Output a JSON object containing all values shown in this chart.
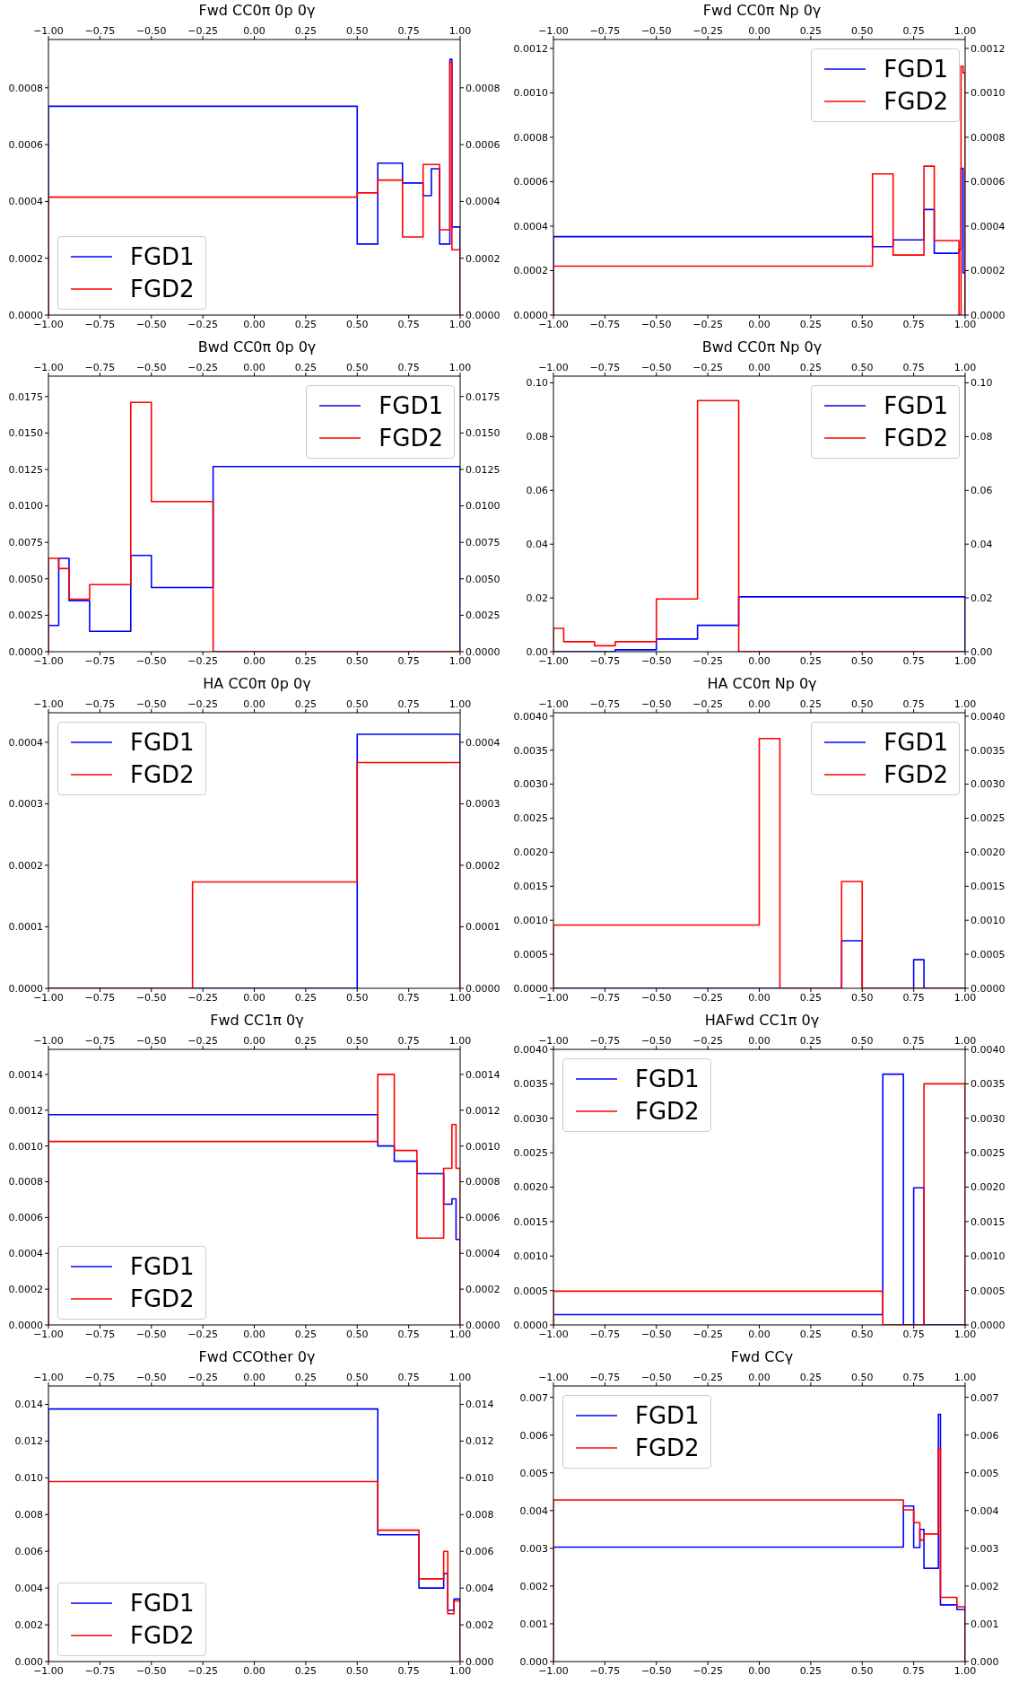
{
  "chart_data": [
    {
      "type": "histogram",
      "title": "Fwd CC0π 0p 0γ",
      "legend": "bottom left",
      "bins": [
        -1,
        0.5,
        0.6,
        0.72,
        0.82,
        0.86,
        0.9,
        0.95,
        0.96,
        1
      ],
      "series": [
        {
          "name": "FGD1",
          "color": "#0000ff",
          "values": [
            0.000735,
            0.00025,
            0.000535,
            0.000465,
            0.00042,
            0.000515,
            0.00025,
            0.0009,
            0.00031
          ]
        },
        {
          "name": "FGD2",
          "color": "#ff0000",
          "values": [
            0.000415,
            0.00043,
            0.000475,
            0.000275,
            0.00053,
            0.00053,
            0.0003,
            0.00089,
            0.00023
          ]
        }
      ],
      "xlim": [
        -1,
        1
      ],
      "xticks": [
        {
          "value": -1,
          "label": "−1.00"
        },
        {
          "value": -0.75,
          "label": "−0.75"
        },
        {
          "value": -0.5,
          "label": "−0.50"
        },
        {
          "value": -0.25,
          "label": "−0.25"
        },
        {
          "value": 0,
          "label": "0.00"
        },
        {
          "value": 0.25,
          "label": "0.25"
        },
        {
          "value": 0.5,
          "label": "0.50"
        },
        {
          "value": 0.75,
          "label": "0.75"
        },
        {
          "value": 1,
          "label": "1.00"
        }
      ],
      "x2lim": [
        -1,
        1
      ],
      "x2ticks": [
        {
          "value": -1,
          "label": "−1.00"
        },
        {
          "value": -0.75,
          "label": "−0.75"
        },
        {
          "value": -0.5,
          "label": "−0.50"
        },
        {
          "value": -0.25,
          "label": "−0.25"
        },
        {
          "value": 0,
          "label": "0.00"
        },
        {
          "value": 0.25,
          "label": "0.25"
        },
        {
          "value": 0.5,
          "label": "0.50"
        },
        {
          "value": 0.75,
          "label": "0.75"
        },
        {
          "value": 1,
          "label": "1.00"
        }
      ],
      "ylim": [
        0,
        0.00097
      ],
      "yticks": [
        {
          "value": 0,
          "label": "0.0000"
        },
        {
          "value": 0.0002,
          "label": "0.0002"
        },
        {
          "value": 0.0004,
          "label": "0.0004"
        },
        {
          "value": 0.0006,
          "label": "0.0006"
        },
        {
          "value": 0.0008,
          "label": "0.0008"
        }
      ],
      "y2lim": [
        0,
        0.00097
      ],
      "y2ticks": [
        {
          "value": 0,
          "label": "0.0000"
        },
        {
          "value": 0.0002,
          "label": "0.0002"
        },
        {
          "value": 0.0004,
          "label": "0.0004"
        },
        {
          "value": 0.0006,
          "label": "0.0006"
        },
        {
          "value": 0.0008,
          "label": "0.0008"
        }
      ]
    },
    {
      "type": "histogram",
      "title": "Fwd CC0π Np 0γ",
      "legend": "top right",
      "bins": [
        -1,
        0.55,
        0.65,
        0.8,
        0.85,
        0.97,
        0.98,
        0.99,
        1
      ],
      "series": [
        {
          "name": "FGD1",
          "color": "#0000ff",
          "values": [
            0.000353,
            0.000308,
            0.000338,
            0.000475,
            0.000278,
            0.000295,
            0.00066,
            0.00019
          ]
        },
        {
          "name": "FGD2",
          "color": "#ff0000",
          "values": [
            0.00022,
            0.000635,
            0.00027,
            0.00067,
            0.000335,
            0,
            0.00112,
            0.00109
          ]
        }
      ],
      "xlim": [
        -1,
        1
      ],
      "xticks": [
        {
          "value": -1,
          "label": "−1.00"
        },
        {
          "value": -0.75,
          "label": "−0.75"
        },
        {
          "value": -0.5,
          "label": "−0.50"
        },
        {
          "value": -0.25,
          "label": "−0.25"
        },
        {
          "value": 0,
          "label": "0.00"
        },
        {
          "value": 0.25,
          "label": "0.25"
        },
        {
          "value": 0.5,
          "label": "0.50"
        },
        {
          "value": 0.75,
          "label": "0.75"
        },
        {
          "value": 1,
          "label": "1.00"
        }
      ],
      "x2lim": [
        -1,
        1
      ],
      "x2ticks": [
        {
          "value": -1,
          "label": "−1.00"
        },
        {
          "value": -0.75,
          "label": "−0.75"
        },
        {
          "value": -0.5,
          "label": "−0.50"
        },
        {
          "value": -0.25,
          "label": "−0.25"
        },
        {
          "value": 0,
          "label": "0.00"
        },
        {
          "value": 0.25,
          "label": "0.25"
        },
        {
          "value": 0.5,
          "label": "0.50"
        },
        {
          "value": 0.75,
          "label": "0.75"
        },
        {
          "value": 1,
          "label": "1.00"
        }
      ],
      "ylim": [
        0,
        0.00124
      ],
      "yticks": [
        {
          "value": 0,
          "label": "0.0000"
        },
        {
          "value": 0.0002,
          "label": "0.0002"
        },
        {
          "value": 0.0004,
          "label": "0.0004"
        },
        {
          "value": 0.0006,
          "label": "0.0006"
        },
        {
          "value": 0.0008,
          "label": "0.0008"
        },
        {
          "value": 0.001,
          "label": "0.0010"
        },
        {
          "value": 0.0012,
          "label": "0.0012"
        }
      ],
      "y2lim": [
        0,
        0.00124
      ],
      "y2ticks": [
        {
          "value": 0,
          "label": "0.0000"
        },
        {
          "value": 0.0002,
          "label": "0.0002"
        },
        {
          "value": 0.0004,
          "label": "0.0004"
        },
        {
          "value": 0.0006,
          "label": "0.0006"
        },
        {
          "value": 0.0008,
          "label": "0.0008"
        },
        {
          "value": 0.001,
          "label": "0.0010"
        },
        {
          "value": 0.0012,
          "label": "0.0012"
        }
      ]
    },
    {
      "type": "histogram",
      "title": "Bwd CC0π 0p 0γ",
      "legend": "top right",
      "bins": [
        -1,
        -0.95,
        -0.9,
        -0.8,
        -0.6,
        -0.5,
        -0.2,
        1
      ],
      "series": [
        {
          "name": "FGD1",
          "color": "#0000ff",
          "values": [
            0.0018,
            0.0064,
            0.0035,
            0.0014,
            0.0066,
            0.0044,
            0.0127
          ]
        },
        {
          "name": "FGD2",
          "color": "#ff0000",
          "values": [
            0.0064,
            0.0057,
            0.0036,
            0.0046,
            0.0171,
            0.0103,
            0
          ]
        }
      ],
      "xlim": [
        -1,
        1
      ],
      "xticks": [
        {
          "value": -1,
          "label": "−1.00"
        },
        {
          "value": -0.75,
          "label": "−0.75"
        },
        {
          "value": -0.5,
          "label": "−0.50"
        },
        {
          "value": -0.25,
          "label": "−0.25"
        },
        {
          "value": 0,
          "label": "0.00"
        },
        {
          "value": 0.25,
          "label": "0.25"
        },
        {
          "value": 0.5,
          "label": "0.50"
        },
        {
          "value": 0.75,
          "label": "0.75"
        },
        {
          "value": 1,
          "label": "1.00"
        }
      ],
      "x2lim": [
        -1,
        1
      ],
      "x2ticks": [
        {
          "value": -1,
          "label": "−1.00"
        },
        {
          "value": -0.75,
          "label": "−0.75"
        },
        {
          "value": -0.5,
          "label": "−0.50"
        },
        {
          "value": -0.25,
          "label": "−0.25"
        },
        {
          "value": 0,
          "label": "0.00"
        },
        {
          "value": 0.25,
          "label": "0.25"
        },
        {
          "value": 0.5,
          "label": "0.50"
        },
        {
          "value": 0.75,
          "label": "0.75"
        },
        {
          "value": 1,
          "label": "1.00"
        }
      ],
      "ylim": [
        0,
        0.0189
      ],
      "yticks": [
        {
          "value": 0,
          "label": "0.0000"
        },
        {
          "value": 0.0025,
          "label": "0.0025"
        },
        {
          "value": 0.005,
          "label": "0.0050"
        },
        {
          "value": 0.0075,
          "label": "0.0075"
        },
        {
          "value": 0.01,
          "label": "0.0100"
        },
        {
          "value": 0.0125,
          "label": "0.0125"
        },
        {
          "value": 0.015,
          "label": "0.0150"
        },
        {
          "value": 0.0175,
          "label": "0.0175"
        }
      ],
      "y2lim": [
        0,
        0.0189
      ],
      "y2ticks": [
        {
          "value": 0,
          "label": "0.0000"
        },
        {
          "value": 0.0025,
          "label": "0.0025"
        },
        {
          "value": 0.005,
          "label": "0.0050"
        },
        {
          "value": 0.0075,
          "label": "0.0075"
        },
        {
          "value": 0.01,
          "label": "0.0100"
        },
        {
          "value": 0.0125,
          "label": "0.0125"
        },
        {
          "value": 0.015,
          "label": "0.0150"
        },
        {
          "value": 0.0175,
          "label": "0.0175"
        }
      ]
    },
    {
      "type": "histogram",
      "title": "Bwd CC0π Np 0γ",
      "legend": "top right",
      "bins": [
        -1,
        -0.95,
        -0.8,
        -0.7,
        -0.5,
        -0.3,
        -0.1,
        1
      ],
      "series": [
        {
          "name": "FGD1",
          "color": "#0000ff",
          "values": [
            0,
            0,
            0,
            0.0007,
            0.0047,
            0.0098,
            0.0204
          ]
        },
        {
          "name": "FGD2",
          "color": "#ff0000",
          "values": [
            0.0087,
            0.0037,
            0.0022,
            0.0037,
            0.0196,
            0.0934,
            0
          ]
        }
      ],
      "xlim": [
        -1,
        1
      ],
      "xticks": [
        {
          "value": -1,
          "label": "−1.00"
        },
        {
          "value": -0.75,
          "label": "−0.75"
        },
        {
          "value": -0.5,
          "label": "−0.50"
        },
        {
          "value": -0.25,
          "label": "−0.25"
        },
        {
          "value": 0,
          "label": "0.00"
        },
        {
          "value": 0.25,
          "label": "0.25"
        },
        {
          "value": 0.5,
          "label": "0.50"
        },
        {
          "value": 0.75,
          "label": "0.75"
        },
        {
          "value": 1,
          "label": "1.00"
        }
      ],
      "x2lim": [
        -1,
        1
      ],
      "x2ticks": [
        {
          "value": -1,
          "label": "−1.00"
        },
        {
          "value": -0.75,
          "label": "−0.75"
        },
        {
          "value": -0.5,
          "label": "−0.50"
        },
        {
          "value": -0.25,
          "label": "−0.25"
        },
        {
          "value": 0,
          "label": "0.00"
        },
        {
          "value": 0.25,
          "label": "0.25"
        },
        {
          "value": 0.5,
          "label": "0.50"
        },
        {
          "value": 0.75,
          "label": "0.75"
        },
        {
          "value": 1,
          "label": "1.00"
        }
      ],
      "ylim": [
        0,
        0.1025
      ],
      "yticks": [
        {
          "value": 0,
          "label": "0.00"
        },
        {
          "value": 0.02,
          "label": "0.02"
        },
        {
          "value": 0.04,
          "label": "0.04"
        },
        {
          "value": 0.06,
          "label": "0.06"
        },
        {
          "value": 0.08,
          "label": "0.08"
        },
        {
          "value": 0.1,
          "label": "0.10"
        }
      ],
      "y2lim": [
        0,
        0.1025
      ],
      "y2ticks": [
        {
          "value": 0,
          "label": "0.00"
        },
        {
          "value": 0.02,
          "label": "0.02"
        },
        {
          "value": 0.04,
          "label": "0.04"
        },
        {
          "value": 0.06,
          "label": "0.06"
        },
        {
          "value": 0.08,
          "label": "0.08"
        },
        {
          "value": 0.1,
          "label": "0.10"
        }
      ]
    },
    {
      "type": "histogram",
      "title": "HA CC0π 0p 0γ",
      "legend": "top left",
      "bins": [
        -1,
        -0.3,
        0.5,
        1
      ],
      "series": [
        {
          "name": "FGD1",
          "color": "#0000ff",
          "values": [
            0,
            0,
            0.000413
          ]
        },
        {
          "name": "FGD2",
          "color": "#ff0000",
          "values": [
            0,
            0.000173,
            0.000367
          ]
        }
      ],
      "xlim": [
        -1,
        1
      ],
      "xticks": [
        {
          "value": -1,
          "label": "−1.00"
        },
        {
          "value": -0.75,
          "label": "−0.75"
        },
        {
          "value": -0.5,
          "label": "−0.50"
        },
        {
          "value": -0.25,
          "label": "−0.25"
        },
        {
          "value": 0,
          "label": "0.00"
        },
        {
          "value": 0.25,
          "label": "0.25"
        },
        {
          "value": 0.5,
          "label": "0.50"
        },
        {
          "value": 0.75,
          "label": "0.75"
        },
        {
          "value": 1,
          "label": "1.00"
        }
      ],
      "x2lim": [
        -1,
        1
      ],
      "x2ticks": [
        {
          "value": -1,
          "label": "−1.00"
        },
        {
          "value": -0.75,
          "label": "−0.75"
        },
        {
          "value": -0.5,
          "label": "−0.50"
        },
        {
          "value": -0.25,
          "label": "−0.25"
        },
        {
          "value": 0,
          "label": "0.00"
        },
        {
          "value": 0.25,
          "label": "0.25"
        },
        {
          "value": 0.5,
          "label": "0.50"
        },
        {
          "value": 0.75,
          "label": "0.75"
        },
        {
          "value": 1,
          "label": "1.00"
        }
      ],
      "ylim": [
        0,
        0.000448
      ],
      "yticks": [
        {
          "value": 0,
          "label": "0.0000"
        },
        {
          "value": 0.0001,
          "label": "0.0001"
        },
        {
          "value": 0.0002,
          "label": "0.0002"
        },
        {
          "value": 0.0003,
          "label": "0.0003"
        },
        {
          "value": 0.0004,
          "label": "0.0004"
        }
      ],
      "y2lim": [
        0,
        0.000448
      ],
      "y2ticks": [
        {
          "value": 0,
          "label": "0.0000"
        },
        {
          "value": 0.0001,
          "label": "0.0001"
        },
        {
          "value": 0.0002,
          "label": "0.0002"
        },
        {
          "value": 0.0003,
          "label": "0.0003"
        },
        {
          "value": 0.0004,
          "label": "0.0004"
        }
      ]
    },
    {
      "type": "histogram",
      "title": "HA CC0π Np 0γ",
      "legend": "top right",
      "bins": [
        -1,
        0,
        0.1,
        0.4,
        0.5,
        0.75,
        0.8,
        1
      ],
      "series": [
        {
          "name": "FGD1",
          "color": "#0000ff",
          "values": [
            0,
            0,
            0,
            0.0007,
            0,
            0.00042,
            0
          ]
        },
        {
          "name": "FGD2",
          "color": "#ff0000",
          "values": [
            0.00093,
            0.00367,
            0,
            0.00157,
            0,
            0,
            0
          ]
        }
      ],
      "xlim": [
        -1,
        1
      ],
      "xticks": [
        {
          "value": -1,
          "label": "−1.00"
        },
        {
          "value": -0.75,
          "label": "−0.75"
        },
        {
          "value": -0.5,
          "label": "−0.50"
        },
        {
          "value": -0.25,
          "label": "−0.25"
        },
        {
          "value": 0,
          "label": "0.00"
        },
        {
          "value": 0.25,
          "label": "0.25"
        },
        {
          "value": 0.5,
          "label": "0.50"
        },
        {
          "value": 0.75,
          "label": "0.75"
        },
        {
          "value": 1,
          "label": "1.00"
        }
      ],
      "x2lim": [
        -1,
        1
      ],
      "x2ticks": [
        {
          "value": -1,
          "label": "−1.00"
        },
        {
          "value": -0.75,
          "label": "−0.75"
        },
        {
          "value": -0.5,
          "label": "−0.50"
        },
        {
          "value": -0.25,
          "label": "−0.25"
        },
        {
          "value": 0,
          "label": "0.00"
        },
        {
          "value": 0.25,
          "label": "0.25"
        },
        {
          "value": 0.5,
          "label": "0.50"
        },
        {
          "value": 0.75,
          "label": "0.75"
        },
        {
          "value": 1,
          "label": "1.00"
        }
      ],
      "ylim": [
        0,
        0.00405
      ],
      "yticks": [
        {
          "value": 0,
          "label": "0.0000"
        },
        {
          "value": 0.0005,
          "label": "0.0005"
        },
        {
          "value": 0.001,
          "label": "0.0010"
        },
        {
          "value": 0.0015,
          "label": "0.0015"
        },
        {
          "value": 0.002,
          "label": "0.0020"
        },
        {
          "value": 0.0025,
          "label": "0.0025"
        },
        {
          "value": 0.003,
          "label": "0.0030"
        },
        {
          "value": 0.0035,
          "label": "0.0035"
        },
        {
          "value": 0.004,
          "label": "0.0040"
        }
      ],
      "y2lim": [
        0,
        0.00405
      ],
      "y2ticks": [
        {
          "value": 0,
          "label": "0.0000"
        },
        {
          "value": 0.0005,
          "label": "0.0005"
        },
        {
          "value": 0.001,
          "label": "0.0010"
        },
        {
          "value": 0.0015,
          "label": "0.0015"
        },
        {
          "value": 0.002,
          "label": "0.0020"
        },
        {
          "value": 0.0025,
          "label": "0.0025"
        },
        {
          "value": 0.003,
          "label": "0.0030"
        },
        {
          "value": 0.0035,
          "label": "0.0035"
        },
        {
          "value": 0.004,
          "label": "0.0040"
        }
      ]
    },
    {
      "type": "histogram",
      "title": "Fwd CC1π 0γ",
      "legend": "bottom left",
      "bins": [
        -1,
        0.6,
        0.68,
        0.79,
        0.92,
        0.96,
        0.98,
        1
      ],
      "series": [
        {
          "name": "FGD1",
          "color": "#0000ff",
          "values": [
            0.001175,
            0.001,
            0.000915,
            0.000845,
            0.000675,
            0.000705,
            0.000478
          ]
        },
        {
          "name": "FGD2",
          "color": "#ff0000",
          "values": [
            0.001025,
            0.0014,
            0.000975,
            0.000485,
            0.000875,
            0.00112,
            0.000875
          ]
        }
      ],
      "xlim": [
        -1,
        1
      ],
      "xticks": [
        {
          "value": -1,
          "label": "−1.00"
        },
        {
          "value": -0.75,
          "label": "−0.75"
        },
        {
          "value": -0.5,
          "label": "−0.50"
        },
        {
          "value": -0.25,
          "label": "−0.25"
        },
        {
          "value": 0,
          "label": "0.00"
        },
        {
          "value": 0.25,
          "label": "0.25"
        },
        {
          "value": 0.5,
          "label": "0.50"
        },
        {
          "value": 0.75,
          "label": "0.75"
        },
        {
          "value": 1,
          "label": "1.00"
        }
      ],
      "x2lim": [
        -1,
        1
      ],
      "x2ticks": [
        {
          "value": -1,
          "label": "−1.00"
        },
        {
          "value": -0.75,
          "label": "−0.75"
        },
        {
          "value": -0.5,
          "label": "−0.50"
        },
        {
          "value": -0.25,
          "label": "−0.25"
        },
        {
          "value": 0,
          "label": "0.00"
        },
        {
          "value": 0.25,
          "label": "0.25"
        },
        {
          "value": 0.5,
          "label": "0.50"
        },
        {
          "value": 0.75,
          "label": "0.75"
        },
        {
          "value": 1,
          "label": "1.00"
        }
      ],
      "ylim": [
        0,
        0.00154
      ],
      "yticks": [
        {
          "value": 0,
          "label": "0.0000"
        },
        {
          "value": 0.0002,
          "label": "0.0002"
        },
        {
          "value": 0.0004,
          "label": "0.0004"
        },
        {
          "value": 0.0006,
          "label": "0.0006"
        },
        {
          "value": 0.0008,
          "label": "0.0008"
        },
        {
          "value": 0.001,
          "label": "0.0010"
        },
        {
          "value": 0.0012,
          "label": "0.0012"
        },
        {
          "value": 0.0014,
          "label": "0.0014"
        }
      ],
      "y2lim": [
        0,
        0.00154
      ],
      "y2ticks": [
        {
          "value": 0,
          "label": "0.0000"
        },
        {
          "value": 0.0002,
          "label": "0.0002"
        },
        {
          "value": 0.0004,
          "label": "0.0004"
        },
        {
          "value": 0.0006,
          "label": "0.0006"
        },
        {
          "value": 0.0008,
          "label": "0.0008"
        },
        {
          "value": 0.001,
          "label": "0.0010"
        },
        {
          "value": 0.0012,
          "label": "0.0012"
        },
        {
          "value": 0.0014,
          "label": "0.0014"
        }
      ]
    },
    {
      "type": "histogram",
      "title": "HAFwd CC1π 0γ",
      "legend": "top left",
      "bins": [
        -1,
        0.6,
        0.7,
        0.75,
        0.8,
        1
      ],
      "series": [
        {
          "name": "FGD1",
          "color": "#0000ff",
          "values": [
            0.00015,
            0.00364,
            0,
            0.00199,
            0
          ]
        },
        {
          "name": "FGD2",
          "color": "#ff0000",
          "values": [
            0.00049,
            0,
            0,
            0,
            0.0035
          ]
        }
      ],
      "xlim": [
        -1,
        1
      ],
      "xticks": [
        {
          "value": -1,
          "label": "−1.00"
        },
        {
          "value": -0.75,
          "label": "−0.75"
        },
        {
          "value": -0.5,
          "label": "−0.50"
        },
        {
          "value": -0.25,
          "label": "−0.25"
        },
        {
          "value": 0,
          "label": "0.00"
        },
        {
          "value": 0.25,
          "label": "0.25"
        },
        {
          "value": 0.5,
          "label": "0.50"
        },
        {
          "value": 0.75,
          "label": "0.75"
        },
        {
          "value": 1,
          "label": "1.00"
        }
      ],
      "x2lim": [
        -1,
        1
      ],
      "x2ticks": [
        {
          "value": -1,
          "label": "−1.00"
        },
        {
          "value": -0.75,
          "label": "−0.75"
        },
        {
          "value": -0.5,
          "label": "−0.50"
        },
        {
          "value": -0.25,
          "label": "−0.25"
        },
        {
          "value": 0,
          "label": "0.00"
        },
        {
          "value": 0.25,
          "label": "0.25"
        },
        {
          "value": 0.5,
          "label": "0.50"
        },
        {
          "value": 0.75,
          "label": "0.75"
        },
        {
          "value": 1,
          "label": "1.00"
        }
      ],
      "ylim": [
        0,
        0.004
      ],
      "yticks": [
        {
          "value": 0,
          "label": "0.0000"
        },
        {
          "value": 0.0005,
          "label": "0.0005"
        },
        {
          "value": 0.001,
          "label": "0.0010"
        },
        {
          "value": 0.0015,
          "label": "0.0015"
        },
        {
          "value": 0.002,
          "label": "0.0020"
        },
        {
          "value": 0.0025,
          "label": "0.0025"
        },
        {
          "value": 0.003,
          "label": "0.0030"
        },
        {
          "value": 0.0035,
          "label": "0.0035"
        },
        {
          "value": 0.004,
          "label": "0.0040"
        }
      ],
      "y2lim": [
        0,
        0.004
      ],
      "y2ticks": [
        {
          "value": 0,
          "label": "0.0000"
        },
        {
          "value": 0.0005,
          "label": "0.0005"
        },
        {
          "value": 0.001,
          "label": "0.0010"
        },
        {
          "value": 0.0015,
          "label": "0.0015"
        },
        {
          "value": 0.002,
          "label": "0.0020"
        },
        {
          "value": 0.0025,
          "label": "0.0025"
        },
        {
          "value": 0.003,
          "label": "0.0030"
        },
        {
          "value": 0.0035,
          "label": "0.0035"
        },
        {
          "value": 0.004,
          "label": "0.0040"
        }
      ]
    },
    {
      "type": "histogram",
      "title": "Fwd CCOther 0γ",
      "legend": "bottom left",
      "bins": [
        -1,
        0.6,
        0.8,
        0.92,
        0.94,
        0.97,
        1
      ],
      "series": [
        {
          "name": "FGD1",
          "color": "#0000ff",
          "values": [
            0.01375,
            0.0069,
            0.004,
            0.0048,
            0.0028,
            0.0034
          ]
        },
        {
          "name": "FGD2",
          "color": "#ff0000",
          "values": [
            0.0098,
            0.00715,
            0.0045,
            0.006,
            0.0026,
            0.0033
          ]
        }
      ],
      "xlim": [
        -1,
        1
      ],
      "xticks": [
        {
          "value": -1,
          "label": "−1.00"
        },
        {
          "value": -0.75,
          "label": "−0.75"
        },
        {
          "value": -0.5,
          "label": "−0.50"
        },
        {
          "value": -0.25,
          "label": "−0.25"
        },
        {
          "value": 0,
          "label": "0.00"
        },
        {
          "value": 0.25,
          "label": "0.25"
        },
        {
          "value": 0.5,
          "label": "0.50"
        },
        {
          "value": 0.75,
          "label": "0.75"
        },
        {
          "value": 1,
          "label": "1.00"
        }
      ],
      "x2lim": [
        -1,
        1
      ],
      "x2ticks": [
        {
          "value": -1,
          "label": "−1.00"
        },
        {
          "value": -0.75,
          "label": "−0.75"
        },
        {
          "value": -0.5,
          "label": "−0.50"
        },
        {
          "value": -0.25,
          "label": "−0.25"
        },
        {
          "value": 0,
          "label": "0.00"
        },
        {
          "value": 0.25,
          "label": "0.25"
        },
        {
          "value": 0.5,
          "label": "0.50"
        },
        {
          "value": 0.75,
          "label": "0.75"
        },
        {
          "value": 1,
          "label": "1.00"
        }
      ],
      "ylim": [
        0,
        0.015
      ],
      "yticks": [
        {
          "value": 0,
          "label": "0.000"
        },
        {
          "value": 0.002,
          "label": "0.002"
        },
        {
          "value": 0.004,
          "label": "0.004"
        },
        {
          "value": 0.006,
          "label": "0.006"
        },
        {
          "value": 0.008,
          "label": "0.008"
        },
        {
          "value": 0.01,
          "label": "0.010"
        },
        {
          "value": 0.012,
          "label": "0.012"
        },
        {
          "value": 0.014,
          "label": "0.014"
        }
      ],
      "y2lim": [
        0,
        0.015
      ],
      "y2ticks": [
        {
          "value": 0,
          "label": "0.000"
        },
        {
          "value": 0.002,
          "label": "0.002"
        },
        {
          "value": 0.004,
          "label": "0.004"
        },
        {
          "value": 0.006,
          "label": "0.006"
        },
        {
          "value": 0.008,
          "label": "0.008"
        },
        {
          "value": 0.01,
          "label": "0.010"
        },
        {
          "value": 0.012,
          "label": "0.012"
        },
        {
          "value": 0.014,
          "label": "0.014"
        }
      ]
    },
    {
      "type": "histogram",
      "title": "Fwd CCγ",
      "legend": "top left",
      "bins": [
        -1,
        0.7,
        0.75,
        0.78,
        0.8,
        0.84,
        0.87,
        0.88,
        0.96,
        1
      ],
      "series": [
        {
          "name": "FGD1",
          "color": "#0000ff",
          "values": [
            0.00303,
            0.00412,
            0.00302,
            0.0035,
            0.00247,
            0.00247,
            0.00655,
            0.0015,
            0.00138
          ]
        },
        {
          "name": "FGD2",
          "color": "#ff0000",
          "values": [
            0.00428,
            0.00402,
            0.00368,
            0.00322,
            0.00338,
            0.00338,
            0.00565,
            0.0017,
            0.00145
          ]
        }
      ],
      "xlim": [
        -1,
        1
      ],
      "xticks": [
        {
          "value": -1,
          "label": "−1.00"
        },
        {
          "value": -0.75,
          "label": "−0.75"
        },
        {
          "value": -0.5,
          "label": "−0.50"
        },
        {
          "value": -0.25,
          "label": "−0.25"
        },
        {
          "value": 0,
          "label": "0.00"
        },
        {
          "value": 0.25,
          "label": "0.25"
        },
        {
          "value": 0.5,
          "label": "0.50"
        },
        {
          "value": 0.75,
          "label": "0.75"
        },
        {
          "value": 1,
          "label": "1.00"
        }
      ],
      "x2lim": [
        -1,
        1
      ],
      "x2ticks": [
        {
          "value": -1,
          "label": "−1.00"
        },
        {
          "value": -0.75,
          "label": "−0.75"
        },
        {
          "value": -0.5,
          "label": "−0.50"
        },
        {
          "value": -0.25,
          "label": "−0.25"
        },
        {
          "value": 0,
          "label": "0.00"
        },
        {
          "value": 0.25,
          "label": "0.25"
        },
        {
          "value": 0.5,
          "label": "0.50"
        },
        {
          "value": 0.75,
          "label": "0.75"
        },
        {
          "value": 1,
          "label": "1.00"
        }
      ],
      "ylim": [
        0,
        0.0073
      ],
      "yticks": [
        {
          "value": 0,
          "label": "0.000"
        },
        {
          "value": 0.001,
          "label": "0.001"
        },
        {
          "value": 0.002,
          "label": "0.002"
        },
        {
          "value": 0.003,
          "label": "0.003"
        },
        {
          "value": 0.004,
          "label": "0.004"
        },
        {
          "value": 0.005,
          "label": "0.005"
        },
        {
          "value": 0.006,
          "label": "0.006"
        },
        {
          "value": 0.007,
          "label": "0.007"
        }
      ],
      "y2lim": [
        0,
        0.0073
      ],
      "y2ticks": [
        {
          "value": 0,
          "label": "0.000"
        },
        {
          "value": 0.001,
          "label": "0.001"
        },
        {
          "value": 0.002,
          "label": "0.002"
        },
        {
          "value": 0.003,
          "label": "0.003"
        },
        {
          "value": 0.004,
          "label": "0.004"
        },
        {
          "value": 0.005,
          "label": "0.005"
        },
        {
          "value": 0.006,
          "label": "0.006"
        },
        {
          "value": 0.007,
          "label": "0.007"
        }
      ]
    }
  ]
}
